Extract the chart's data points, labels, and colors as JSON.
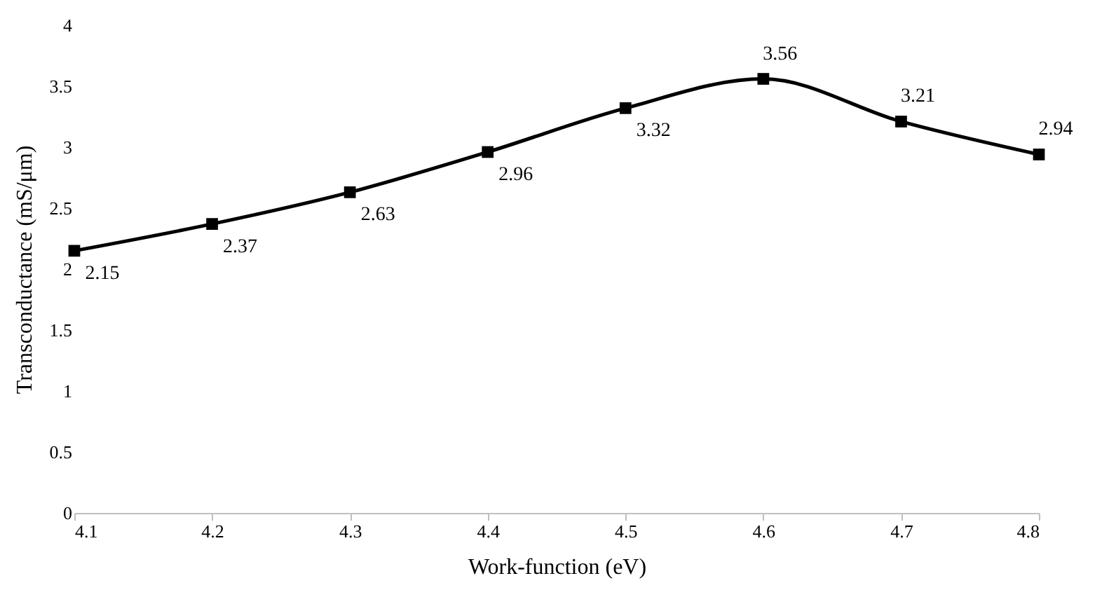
{
  "chart_data": {
    "type": "line",
    "xlabel": "Work-function (eV)",
    "ylabel": "Transconductance (mS/μm)",
    "x": [
      4.1,
      4.2,
      4.3,
      4.4,
      4.5,
      4.6,
      4.7,
      4.8
    ],
    "series": [
      {
        "color": "#000000",
        "values": [
          2.15,
          2.37,
          2.63,
          2.96,
          3.32,
          3.56,
          3.21,
          2.94
        ]
      }
    ],
    "xlim": [
      4.1,
      4.8
    ],
    "xticks": [
      4.1,
      4.2,
      4.3,
      4.4,
      4.5,
      4.6,
      4.7,
      4.8
    ],
    "ylim": [
      0,
      4
    ],
    "yticks": [
      0,
      0.5,
      1,
      1.5,
      2,
      2.5,
      3,
      3.5,
      4
    ],
    "grid": false,
    "marker": "square",
    "line_style": "solid",
    "data_labels": true
  }
}
